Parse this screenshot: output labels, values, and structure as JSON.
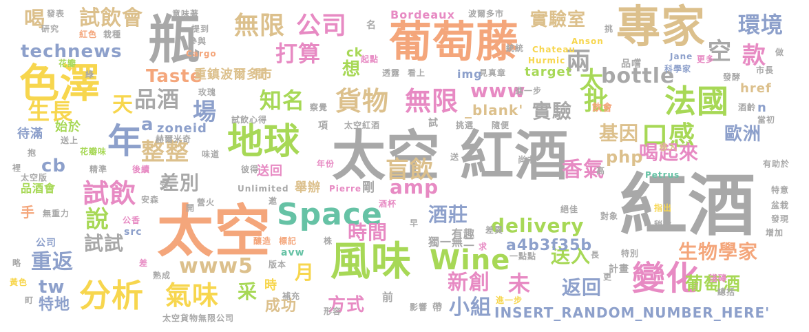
{
  "words": [
    {
      "text": "太空 紅酒",
      "color": "#a8a8a8"
    },
    {
      "text": "紅酒",
      "color": "#a8a8a8"
    },
    {
      "text": "太空",
      "color": "#f4a67b"
    },
    {
      "text": "葡萄藤",
      "color": "#f4a67b"
    },
    {
      "text": "專家",
      "color": "#dcc08c"
    },
    {
      "text": "瓶",
      "color": "#a8a8a8"
    },
    {
      "text": "色澤",
      "color": "#f7d64e"
    },
    {
      "text": "地球",
      "color": "#a7d856"
    },
    {
      "text": "風味",
      "color": "#a7d856"
    },
    {
      "text": "變化",
      "color": "#e78ac3"
    },
    {
      "text": "Space",
      "color": "#66c2a5"
    },
    {
      "text": "Wine",
      "color": "#a7d856"
    },
    {
      "text": "分析",
      "color": "#f7d64e"
    },
    {
      "text": "年",
      "color": "#8da0cb"
    },
    {
      "text": "法國",
      "color": "#a7d856"
    },
    {
      "text": "貨物",
      "color": "#dcc08c"
    },
    {
      "text": "無限",
      "color": "#e78ac3"
    },
    {
      "text": "無限",
      "color": "#dcc08c"
    },
    {
      "text": "公司",
      "color": "#e78ac3"
    },
    {
      "text": "打算",
      "color": "#e78ac3"
    },
    {
      "text": "口感",
      "color": "#a7d856"
    },
    {
      "text": "盲飲",
      "color": "#dcc08c"
    },
    {
      "text": "整整",
      "color": "#dcc08c"
    },
    {
      "text": "氣味",
      "color": "#f7d64e"
    },
    {
      "text": "試飲",
      "color": "#e78ac3"
    },
    {
      "text": "試飲會",
      "color": "#dcc08c"
    },
    {
      "text": "technews",
      "color": "#8da0cb"
    },
    {
      "text": "品酒",
      "color": "#a8a8a8"
    },
    {
      "text": "生長",
      "color": "#f7d64e"
    },
    {
      "text": "環境",
      "color": "#8da0cb"
    },
    {
      "text": "款",
      "color": "#e78ac3"
    },
    {
      "text": "空",
      "color": "#a8a8a8"
    },
    {
      "text": "兩",
      "color": "#a8a8a8"
    },
    {
      "text": "實驗室",
      "color": "#dcc08c"
    },
    {
      "text": "實驗",
      "color": "#a8a8a8"
    },
    {
      "text": "批",
      "color": "#a7d856"
    },
    {
      "text": "太",
      "color": "#a7d856"
    },
    {
      "text": "bottle",
      "color": "#a8a8a8"
    },
    {
      "text": "www",
      "color": "#e78ac3"
    },
    {
      "text": "知名",
      "color": "#a7d856"
    },
    {
      "text": "Taste",
      "color": "#f4a67b"
    },
    {
      "text": "場",
      "color": "#8da0cb"
    },
    {
      "text": "天",
      "color": "#f7d64e"
    },
    {
      "text": "喝",
      "color": "#dcc08c"
    },
    {
      "text": "基因",
      "color": "#dcc08c"
    },
    {
      "text": "喝起來",
      "color": "#e78ac3"
    },
    {
      "text": "歐洲",
      "color": "#8da0cb"
    },
    {
      "text": "php",
      "color": "#dcc08c"
    },
    {
      "text": "香氣",
      "color": "#e78ac3"
    },
    {
      "text": "amp",
      "color": "#e78ac3"
    },
    {
      "text": "差別",
      "color": "#a8a8a8"
    },
    {
      "text": "說",
      "color": "#a7d856"
    },
    {
      "text": "酒莊",
      "color": "#8da0cb"
    },
    {
      "text": "時間",
      "color": "#e78ac3"
    },
    {
      "text": "delivery",
      "color": "#a7d856"
    },
    {
      "text": "生物學家",
      "color": "#f4a67b"
    },
    {
      "text": "送入",
      "color": "#a7d856"
    },
    {
      "text": "試試",
      "color": "#a8a8a8"
    },
    {
      "text": "重返",
      "color": "#8da0cb"
    },
    {
      "text": "www5",
      "color": "#dcc08c"
    },
    {
      "text": "新創",
      "color": "#e78ac3"
    },
    {
      "text": "未",
      "color": "#e78ac3"
    },
    {
      "text": "月",
      "color": "#f7d64e"
    },
    {
      "text": "采",
      "color": "#a7d856"
    },
    {
      "text": "方式",
      "color": "#e78ac3"
    },
    {
      "text": "小組",
      "color": "#8da0cb"
    },
    {
      "text": "返回",
      "color": "#8da0cb"
    },
    {
      "text": "葡萄酒",
      "color": "#a7d856"
    },
    {
      "text": "tw",
      "color": "#8da0cb"
    },
    {
      "text": "特地",
      "color": "#8da0cb"
    },
    {
      "text": "成功",
      "color": "#dcc08c"
    },
    {
      "text": "a4b3f35b",
      "color": "#8da0cb"
    },
    {
      "text": "INSERT_RANDOM_NUMBER_HERE'",
      "color": "#8da0cb"
    },
    {
      "text": "cb",
      "color": "#8da0cb"
    },
    {
      "text": "zoneid",
      "color": "#8da0cb"
    },
    {
      "text": "a",
      "color": "#8da0cb"
    },
    {
      "text": "重鎮波爾多市",
      "color": "#dcc08c"
    },
    {
      "text": "想",
      "color": "#a7d856"
    },
    {
      "text": "ck",
      "color": "#a7d856"
    },
    {
      "text": "間",
      "color": "#dcc08c"
    },
    {
      "text": "_blank'",
      "color": "#dcc08c"
    },
    {
      "text": "href",
      "color": "#dcc08c"
    },
    {
      "text": "n",
      "color": "#8da0cb"
    },
    {
      "text": "target",
      "color": "#a7d856"
    },
    {
      "text": "img",
      "color": "#8da0cb"
    },
    {
      "text": "Bordeaux",
      "color": "#e78ac3"
    },
    {
      "text": "Cargo",
      "color": "#f4a67b"
    },
    {
      "text": "Chateau",
      "color": "#f7d64e"
    },
    {
      "text": "Anson",
      "color": "#f7d64e"
    },
    {
      "text": "Hurmic",
      "color": "#f7d64e"
    },
    {
      "text": "Jane",
      "color": "#8da0cb"
    },
    {
      "text": "Petrus",
      "color": "#66c2a5"
    },
    {
      "text": "Pierre",
      "color": "#e78ac3"
    },
    {
      "text": "Unlimited",
      "color": "#a8a8a8"
    },
    {
      "text": "src",
      "color": "#8da0cb"
    },
    {
      "text": "avw",
      "color": "#66c2a5"
    },
    {
      "text": "公司",
      "color": "#8da0cb"
    },
    {
      "text": "品酒會",
      "color": "#a7d856"
    },
    {
      "text": "手",
      "color": "#f4a67b"
    },
    {
      "text": "待滿",
      "color": "#8da0cb"
    },
    {
      "text": "始於",
      "color": "#a7d856"
    },
    {
      "text": "品嚐",
      "color": "#a8a8a8"
    },
    {
      "text": "飲會",
      "color": "#f4a67b"
    },
    {
      "text": "時",
      "color": "#f7d64e"
    },
    {
      "text": "項",
      "color": "#a8a8a8"
    },
    {
      "text": "試",
      "color": "#a8a8a8"
    },
    {
      "text": "送回",
      "color": "#e78ac3"
    },
    {
      "text": "舉辦",
      "color": "#dcc08c"
    },
    {
      "text": "剛",
      "color": "#a8a8a8"
    },
    {
      "text": "有趣",
      "color": "#a8a8a8"
    },
    {
      "text": "獨一無二",
      "color": "#a8a8a8"
    },
    {
      "text": "計畫",
      "color": "#a8a8a8"
    },
    {
      "text": "前",
      "color": "#a8a8a8"
    },
    {
      "text": "帶",
      "color": "#a8a8a8"
    },
    {
      "text": "一點點",
      "color": "#a8a8a8"
    },
    {
      "text": "進一步",
      "color": "#f7d64e"
    },
    {
      "text": "進一步",
      "color": "#a8a8a8"
    },
    {
      "text": "研究",
      "color": "#a8a8a8"
    },
    {
      "text": "發表",
      "color": "#a8a8a8"
    },
    {
      "text": "意味著",
      "color": "#a8a8a8"
    },
    {
      "text": "波爾多市",
      "color": "#a8a8a8"
    },
    {
      "text": "提到",
      "color": "#a8a8a8"
    },
    {
      "text": "參與",
      "color": "#a8a8a8"
    },
    {
      "text": "紅色",
      "color": "#f4a67b"
    },
    {
      "text": "栽種",
      "color": "#a8a8a8"
    },
    {
      "text": "花瓣",
      "color": "#a7d856"
    },
    {
      "text": "綠",
      "color": "#a8a8a8"
    },
    {
      "text": "起點",
      "color": "#e78ac3"
    },
    {
      "text": "透露",
      "color": "#a8a8a8"
    },
    {
      "text": "看上",
      "color": "#a8a8a8"
    },
    {
      "text": "見真章",
      "color": "#a8a8a8"
    },
    {
      "text": "名",
      "color": "#a8a8a8"
    },
    {
      "text": "統統",
      "color": "#a8a8a8"
    },
    {
      "text": "挑",
      "color": "#a8a8a8"
    },
    {
      "text": "做",
      "color": "#a8a8a8"
    },
    {
      "text": "市長",
      "color": "#a8a8a8"
    },
    {
      "text": "更多",
      "color": "#e78ac3"
    },
    {
      "text": "發酵",
      "color": "#a8a8a8"
    },
    {
      "text": "科學家",
      "color": "#8da0cb"
    },
    {
      "text": "當初",
      "color": "#a8a8a8"
    },
    {
      "text": "酒齡",
      "color": "#a8a8a8"
    },
    {
      "text": "玫瑰",
      "color": "#a8a8a8"
    },
    {
      "text": "察覺",
      "color": "#a8a8a8"
    },
    {
      "text": "試飲心得",
      "color": "#a8a8a8"
    },
    {
      "text": "太空紅酒",
      "color": "#a8a8a8"
    },
    {
      "text": "挑選",
      "color": "#a8a8a8"
    },
    {
      "text": "隨便",
      "color": "#a8a8a8"
    },
    {
      "text": "赫爾米奇",
      "color": "#a8a8a8"
    },
    {
      "text": "送上",
      "color": "#a8a8a8"
    },
    {
      "text": "抱",
      "color": "#a8a8a8"
    },
    {
      "text": "花瓣味",
      "color": "#a7d856"
    },
    {
      "text": "味道",
      "color": "#a8a8a8"
    },
    {
      "text": "裡",
      "color": "#a8a8a8"
    },
    {
      "text": "精準",
      "color": "#a8a8a8"
    },
    {
      "text": "後續",
      "color": "#e78ac3"
    },
    {
      "text": "彼得",
      "color": "#a8a8a8"
    },
    {
      "text": "年份",
      "color": "#e78ac3"
    },
    {
      "text": "送",
      "color": "#a8a8a8"
    },
    {
      "text": "尚未",
      "color": "#a8a8a8"
    },
    {
      "text": "移入",
      "color": "#dcc08c"
    },
    {
      "text": "高",
      "color": "#a8a8a8"
    },
    {
      "text": "有助於",
      "color": "#a8a8a8"
    },
    {
      "text": "太空版",
      "color": "#a8a8a8"
    },
    {
      "text": "安森",
      "color": "#a8a8a8"
    },
    {
      "text": "受",
      "color": "#a8a8a8"
    },
    {
      "text": "開",
      "color": "#a8a8a8"
    },
    {
      "text": "營火",
      "color": "#a8a8a8"
    },
    {
      "text": "邀",
      "color": "#a8a8a8"
    },
    {
      "text": "酒杯",
      "color": "#e78ac3"
    },
    {
      "text": "早",
      "color": "#a8a8a8"
    },
    {
      "text": "差異",
      "color": "#a8a8a8"
    },
    {
      "text": "絕佳",
      "color": "#a8a8a8"
    },
    {
      "text": "指出",
      "color": "#f7d64e"
    },
    {
      "text": "對象",
      "color": "#a8a8a8"
    },
    {
      "text": "稍微",
      "color": "#a8a8a8"
    },
    {
      "text": "特意",
      "color": "#a8a8a8"
    },
    {
      "text": "盆栽",
      "color": "#a8a8a8"
    },
    {
      "text": "發現",
      "color": "#a8a8a8"
    },
    {
      "text": "增加",
      "color": "#a8a8a8"
    },
    {
      "text": "無重力",
      "color": "#a8a8a8"
    },
    {
      "text": "公香",
      "color": "#e78ac3"
    },
    {
      "text": "釀造",
      "color": "#f4a67b"
    },
    {
      "text": "標記",
      "color": "#f4a67b"
    },
    {
      "text": "株",
      "color": "#a8a8a8"
    },
    {
      "text": "求",
      "color": "#e78ac3"
    },
    {
      "text": "長",
      "color": "#a8a8a8"
    },
    {
      "text": "特別",
      "color": "#a8a8a8"
    },
    {
      "text": "略",
      "color": "#a8a8a8"
    },
    {
      "text": "差",
      "color": "#e78ac3"
    },
    {
      "text": "版本",
      "color": "#a8a8a8"
    },
    {
      "text": "黃色",
      "color": "#f7d64e"
    },
    {
      "text": "熟成",
      "color": "#a8a8a8"
    },
    {
      "text": "補充",
      "color": "#a8a8a8"
    },
    {
      "text": "更",
      "color": "#a8a8a8"
    },
    {
      "text": "淺磚",
      "color": "#e78ac3"
    },
    {
      "text": "總括",
      "color": "#a8a8a8"
    },
    {
      "text": "町",
      "color": "#a8a8a8"
    },
    {
      "text": "太空貨物無限公司",
      "color": "#a8a8a8"
    },
    {
      "text": "形容",
      "color": "#a8a8a8"
    },
    {
      "text": "影響",
      "color": "#a8a8a8"
    }
  ]
}
